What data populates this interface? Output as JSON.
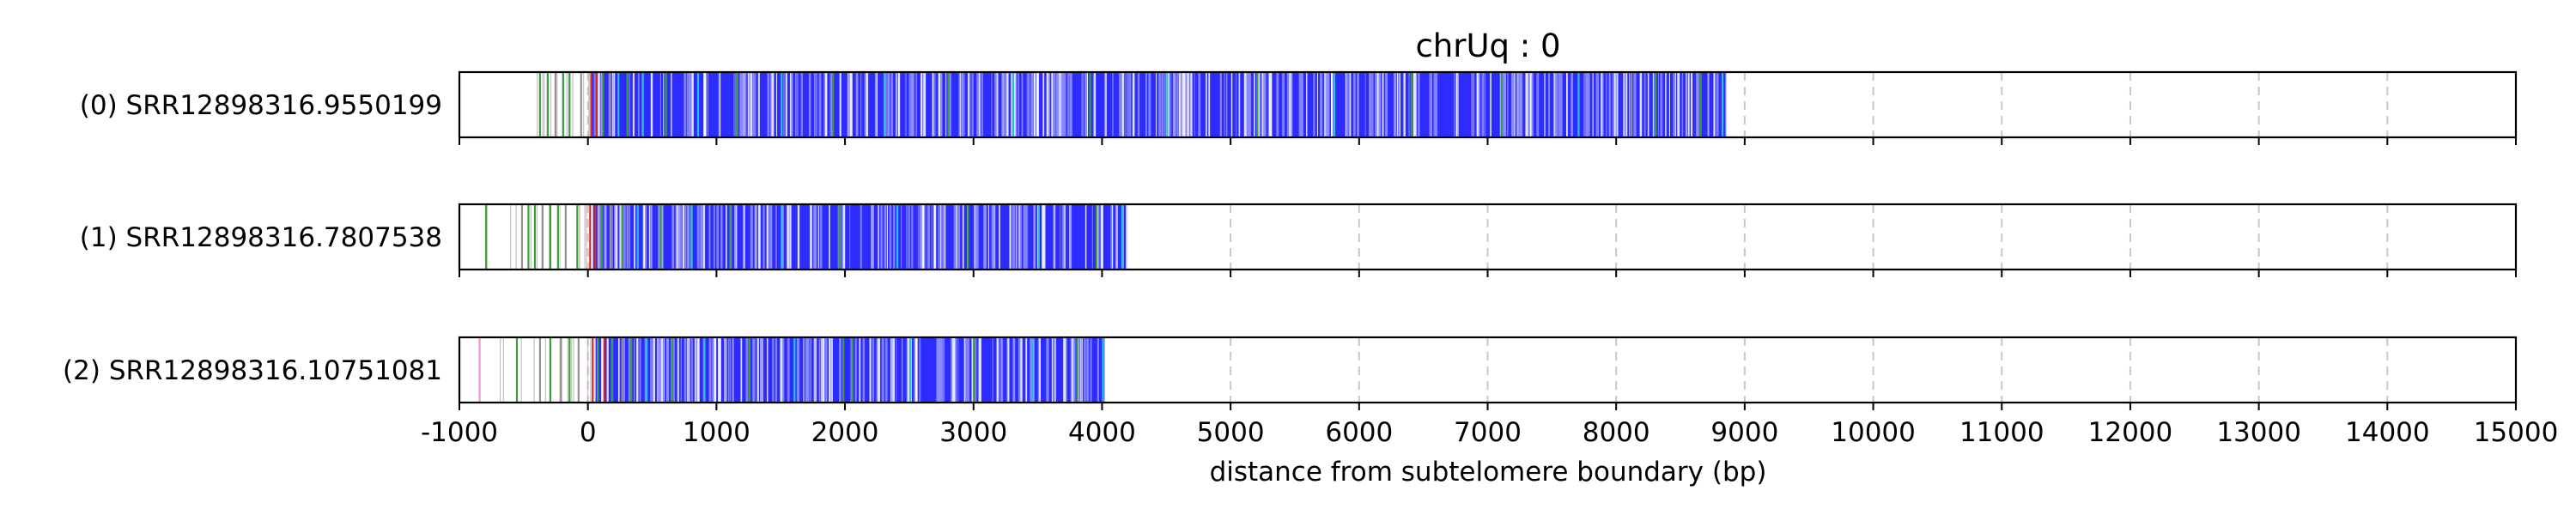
{
  "chart_data": {
    "type": "track",
    "title": "chrUq : 0",
    "xlabel": "distance from subtelomere boundary (bp)",
    "xlim": [
      -1000,
      15000
    ],
    "xticks": [
      -1000,
      0,
      1000,
      2000,
      3000,
      4000,
      5000,
      6000,
      7000,
      8000,
      9000,
      10000,
      11000,
      12000,
      13000,
      14000,
      15000
    ],
    "grid": "x-dashed",
    "colors": {
      "repeat": "#2c2cff",
      "repeat_light": "#8f8fff",
      "variant_green": "#3aa03a",
      "variant_cyan": "#29c2d6",
      "variant_red": "#d62828",
      "variant_gray": "#9a8f8f",
      "variant_pink": "#e89ad8"
    },
    "tracks": [
      {
        "label": "(0) SRR12898316.9550199",
        "extent": [
          -400,
          8850
        ],
        "repeat_start": 20,
        "repeat_end": 8850,
        "variants": [
          [
            -380,
            "variant_green"
          ],
          [
            -320,
            "variant_green"
          ],
          [
            -260,
            "variant_gray"
          ],
          [
            -200,
            "variant_green"
          ],
          [
            -150,
            "variant_green"
          ],
          [
            -60,
            "variant_gray"
          ],
          [
            20,
            "variant_red"
          ],
          [
            60,
            "variant_red"
          ],
          [
            110,
            "variant_green"
          ],
          [
            160,
            "variant_gray"
          ],
          [
            230,
            "variant_cyan"
          ],
          [
            300,
            "variant_green"
          ],
          [
            420,
            "variant_cyan"
          ],
          [
            600,
            "variant_green"
          ],
          [
            850,
            "variant_cyan"
          ],
          [
            1150,
            "variant_green"
          ],
          [
            1500,
            "variant_cyan"
          ],
          [
            1900,
            "variant_green"
          ],
          [
            2300,
            "variant_cyan"
          ],
          [
            2800,
            "variant_green"
          ],
          [
            3300,
            "variant_cyan"
          ],
          [
            3900,
            "variant_green"
          ],
          [
            4500,
            "variant_cyan"
          ],
          [
            5200,
            "variant_green"
          ],
          [
            5800,
            "variant_cyan"
          ],
          [
            6400,
            "variant_green"
          ],
          [
            7100,
            "variant_green"
          ],
          [
            7700,
            "variant_cyan"
          ],
          [
            8300,
            "variant_green"
          ],
          [
            8650,
            "variant_green"
          ],
          [
            8820,
            "variant_cyan"
          ]
        ]
      },
      {
        "label": "(1) SRR12898316.7807538",
        "extent": [
          -800,
          4200
        ],
        "repeat_start": 40,
        "repeat_end": 4200,
        "variants": [
          [
            -800,
            "variant_green"
          ],
          [
            -520,
            "variant_gray"
          ],
          [
            -470,
            "variant_green"
          ],
          [
            -420,
            "variant_green"
          ],
          [
            -360,
            "variant_gray"
          ],
          [
            -300,
            "variant_green"
          ],
          [
            -240,
            "variant_green"
          ],
          [
            -180,
            "variant_gray"
          ],
          [
            -90,
            "variant_green"
          ],
          [
            10,
            "variant_red"
          ],
          [
            50,
            "variant_red"
          ],
          [
            100,
            "variant_green"
          ],
          [
            170,
            "variant_gray"
          ],
          [
            260,
            "variant_green"
          ],
          [
            380,
            "variant_cyan"
          ],
          [
            560,
            "variant_green"
          ],
          [
            800,
            "variant_cyan"
          ],
          [
            1100,
            "variant_green"
          ],
          [
            1500,
            "variant_cyan"
          ],
          [
            1950,
            "variant_green"
          ],
          [
            2400,
            "variant_cyan"
          ],
          [
            2950,
            "variant_green"
          ],
          [
            3500,
            "variant_cyan"
          ],
          [
            3950,
            "variant_green"
          ],
          [
            4150,
            "variant_cyan"
          ]
        ]
      },
      {
        "label": "(2) SRR12898316.10751081",
        "extent": [
          -850,
          4020
        ],
        "repeat_start": 60,
        "repeat_end": 4020,
        "variants": [
          [
            -850,
            "variant_pink"
          ],
          [
            -560,
            "variant_green"
          ],
          [
            -380,
            "variant_gray"
          ],
          [
            -300,
            "variant_green"
          ],
          [
            -220,
            "variant_gray"
          ],
          [
            -150,
            "variant_green"
          ],
          [
            -80,
            "variant_gray"
          ],
          [
            30,
            "variant_red"
          ],
          [
            70,
            "variant_green"
          ],
          [
            120,
            "variant_red"
          ],
          [
            180,
            "variant_green"
          ],
          [
            260,
            "variant_gray"
          ],
          [
            330,
            "variant_green"
          ],
          [
            450,
            "variant_cyan"
          ],
          [
            650,
            "variant_green"
          ],
          [
            900,
            "variant_cyan"
          ],
          [
            1250,
            "variant_green"
          ],
          [
            1600,
            "variant_cyan"
          ],
          [
            1980,
            "variant_green"
          ],
          [
            2050,
            "variant_green"
          ],
          [
            2500,
            "variant_cyan"
          ],
          [
            3000,
            "variant_green"
          ],
          [
            3450,
            "variant_cyan"
          ],
          [
            3800,
            "variant_green"
          ],
          [
            4000,
            "variant_cyan"
          ]
        ]
      }
    ]
  }
}
